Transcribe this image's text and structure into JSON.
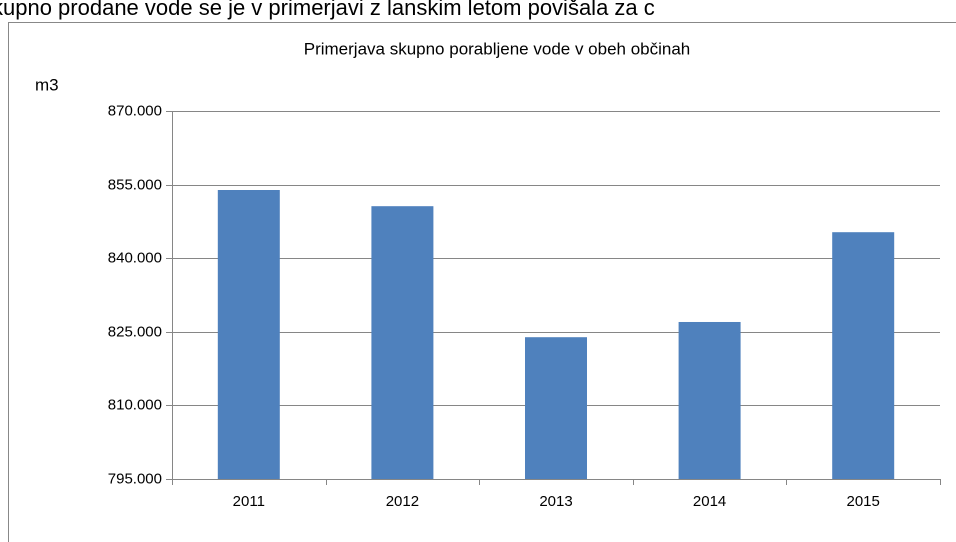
{
  "page_text": "kupno prodane vode se je v primerjavi z lanskim letom povišala za c",
  "chart_data": {
    "type": "bar",
    "title": "Primerjava skupno porabljene vode v obeh občinah",
    "y_label": "m3",
    "categories": [
      "2011",
      "2012",
      "2013",
      "2014",
      "2015"
    ],
    "values": [
      853900,
      850600,
      823900,
      827000,
      845300
    ],
    "color": "#4f81bd",
    "ylim": [
      795000,
      870000
    ],
    "yticks": [
      {
        "value": 795000,
        "label": "795.000"
      },
      {
        "value": 810000,
        "label": "810.000"
      },
      {
        "value": 825000,
        "label": "825.000"
      },
      {
        "value": 840000,
        "label": "840.000"
      },
      {
        "value": 855000,
        "label": "855.000"
      },
      {
        "value": 870000,
        "label": "870.000"
      }
    ],
    "grid": true
  }
}
